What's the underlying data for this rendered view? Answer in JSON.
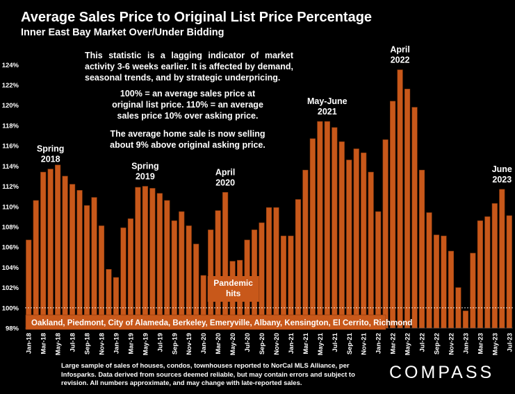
{
  "header": {
    "title": "Average Sales Price to Original List Price Percentage",
    "subtitle": "Inner East Bay Market Over/Under Bidding"
  },
  "notes": {
    "lagging": "This statistic is a lagging indicator of market activity 3-6 weeks earlier. It is affected by demand, seasonal trends, and by strategic underpricing.",
    "definition": "100% = an average sales price at original list price. 110% = an average sales price 10% over asking price.",
    "current": "The average home sale is now selling about 9% above original asking price."
  },
  "footer": {
    "text": "Large sample of sales of houses, condos, townhouses reported to NorCal MLS Alliance, per Infosparks. Data derived from sources deemed reliable, but may contain errors and subject to revision. All numbers approximate, and may change with late-reported sales.",
    "logo": "COMPASS"
  },
  "colors": {
    "bar": "#c8581a",
    "bar_stroke": "#8a3a0e",
    "text": "#ffffff",
    "background": "#000000",
    "reference_line": "#ffffff"
  },
  "chart_data": {
    "type": "bar",
    "ylim": [
      98,
      124.5
    ],
    "yticks": [
      98,
      100,
      102,
      104,
      106,
      108,
      110,
      112,
      114,
      116,
      118,
      120,
      122,
      124
    ],
    "ytick_format": "{v}%",
    "reference_line": 100,
    "x": [
      "Jan-18",
      "Feb-18",
      "Mar-18",
      "Apr-18",
      "May-18",
      "Jun-18",
      "Jul-18",
      "Aug-18",
      "Sep-18",
      "Oct-18",
      "Nov-18",
      "Dec-18",
      "Jan-19",
      "Feb-19",
      "Mar-19",
      "Apr-19",
      "May-19",
      "Jun-19",
      "Jul-19",
      "Aug-19",
      "Sep-19",
      "Oct-19",
      "Nov-19",
      "Dec-19",
      "Jan-20",
      "Feb-20",
      "Mar-20",
      "Apr-20",
      "May-20",
      "Jun-20",
      "Jul-20",
      "Aug-20",
      "Sep-20",
      "Oct-20",
      "Nov-20",
      "Dec-20",
      "Jan-21",
      "Feb-21",
      "Mar-21",
      "Apr-21",
      "May-21",
      "Jun-21",
      "Jul-21",
      "Aug-21",
      "Sep-21",
      "Oct-21",
      "Nov-21",
      "Dec-21",
      "Jan-22",
      "Feb-22",
      "Mar-22",
      "Apr-22",
      "May-22",
      "Jun-22",
      "Jul-22",
      "Aug-22",
      "Sep-22",
      "Oct-22",
      "Nov-22",
      "Dec-22",
      "Jan-23",
      "Feb-23",
      "Mar-23",
      "Apr-23",
      "May-23",
      "Jun-23",
      "Jul-23"
    ],
    "values": [
      106.7,
      110.6,
      113.4,
      113.7,
      114.1,
      113.0,
      112.2,
      111.6,
      110.1,
      110.9,
      108.1,
      103.8,
      103.0,
      107.9,
      108.8,
      111.9,
      112.0,
      111.8,
      111.3,
      110.6,
      108.6,
      109.5,
      108.1,
      106.3,
      103.2,
      107.7,
      109.6,
      111.4,
      104.6,
      104.7,
      106.7,
      107.7,
      108.4,
      109.9,
      109.9,
      107.1,
      107.1,
      110.7,
      113.6,
      116.7,
      118.4,
      118.4,
      117.8,
      116.4,
      114.6,
      115.7,
      115.3,
      113.4,
      109.5,
      116.6,
      120.4,
      123.5,
      121.6,
      119.8,
      113.6,
      109.4,
      107.2,
      107.1,
      105.6,
      102.0,
      99.7,
      105.4,
      108.6,
      109.0,
      110.3,
      111.7,
      109.1
    ],
    "xtick_labels_shown": [
      "Jan-18",
      "Mar-18",
      "May-18",
      "Jul-18",
      "Sep-18",
      "Nov-18",
      "Jan-19",
      "Mar-19",
      "May-19",
      "Jul-19",
      "Sep-19",
      "Nov-19",
      "Jan-20",
      "Mar-20",
      "May-20",
      "Jul-20",
      "Sep-20",
      "Nov-20",
      "Jan-21",
      "Mar-21",
      "May-21",
      "Jul-21",
      "Sep-21",
      "Nov-21",
      "Jan-22",
      "Mar-22",
      "May-22",
      "Jul-22",
      "Sep-22",
      "Nov-22",
      "Jan-23",
      "Mar-23",
      "May-23",
      "Jul-23"
    ],
    "annotations": [
      {
        "at": "Apr-18",
        "lines": [
          "Spring",
          "2018"
        ]
      },
      {
        "at": "May-19",
        "lines": [
          "Spring",
          "2019"
        ]
      },
      {
        "at": "Apr-20",
        "lines": [
          "April",
          "2020"
        ]
      },
      {
        "at": "Jun-21",
        "lines": [
          "May-June",
          "2021"
        ]
      },
      {
        "at": "Apr-22",
        "lines": [
          "April",
          "2022"
        ]
      },
      {
        "at": "Jun-23",
        "lines": [
          "June",
          "2023"
        ]
      }
    ],
    "pandemic_label": [
      "Pandemic",
      "hits"
    ],
    "region_label": "Oakland, Piedmont, City of Alameda, Berkeley, Emeryville, Albany, Kensington, El Cerrito, Richmond"
  }
}
